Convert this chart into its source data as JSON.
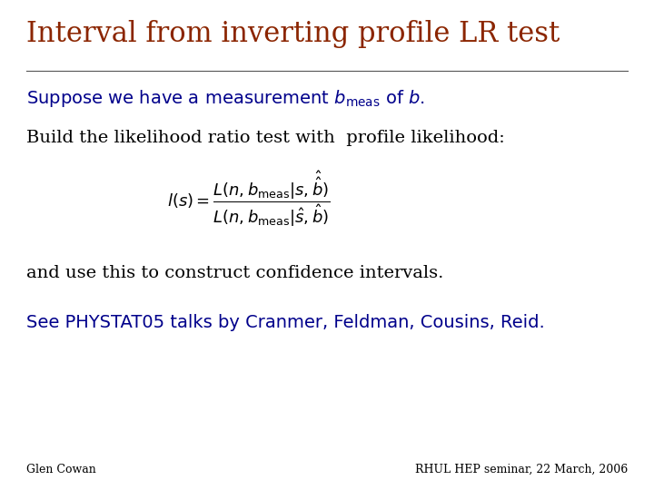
{
  "title": "Interval from inverting profile LR test",
  "title_color": "#8B2500",
  "title_fontsize": 22,
  "line1": "Suppose we have a measurement $b_{\\mathrm{meas}}$ of $b$.",
  "line1_color": "#00008B",
  "line1_fontsize": 14,
  "line2": "Build the likelihood ratio test with  profile likelihood:",
  "line2_color": "#000000",
  "line2_fontsize": 14,
  "formula": "$l(s) = \\dfrac{L(n, b_{\\mathrm{meas}} | s, \\hat{\\hat{b}})}{L(n, b_{\\mathrm{meas}} | \\hat{s}, \\hat{b})}$",
  "formula_color": "#000000",
  "formula_fontsize": 13,
  "line3": "and use this to construct confidence intervals.",
  "line3_color": "#000000",
  "line3_fontsize": 14,
  "line4": "See PHYSTAT05 talks by Cranmer, Feldman, Cousins, Reid.",
  "line4_color": "#00008B",
  "line4_fontsize": 14,
  "footer_left": "Glen Cowan",
  "footer_right": "RHUL HEP seminar, 22 March, 2006",
  "footer_color": "#000000",
  "footer_fontsize": 9,
  "background_color": "#ffffff",
  "divider_color": "#555555"
}
